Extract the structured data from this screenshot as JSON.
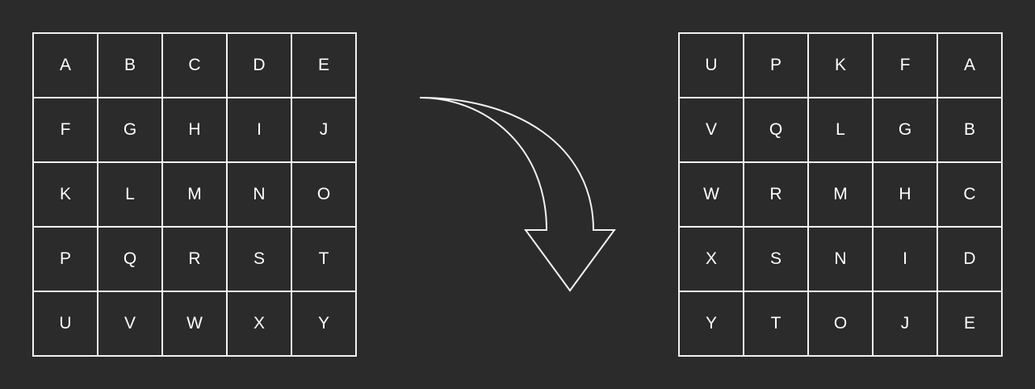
{
  "before_grid": {
    "cells": [
      "A",
      "B",
      "C",
      "D",
      "E",
      "F",
      "G",
      "H",
      "I",
      "J",
      "K",
      "L",
      "M",
      "N",
      "O",
      "P",
      "Q",
      "R",
      "S",
      "T",
      "U",
      "V",
      "W",
      "X",
      "Y"
    ]
  },
  "after_grid": {
    "cells": [
      "U",
      "P",
      "K",
      "F",
      "A",
      "V",
      "Q",
      "L",
      "G",
      "B",
      "W",
      "R",
      "M",
      "H",
      "C",
      "X",
      "S",
      "N",
      "I",
      "D",
      "Y",
      "T",
      "O",
      "J",
      "E"
    ]
  },
  "colors": {
    "background": "#2b2b2b",
    "line": "#f2f2f2",
    "text": "#ffffff"
  },
  "arrow_icon": "curved-arrow-down-icon"
}
